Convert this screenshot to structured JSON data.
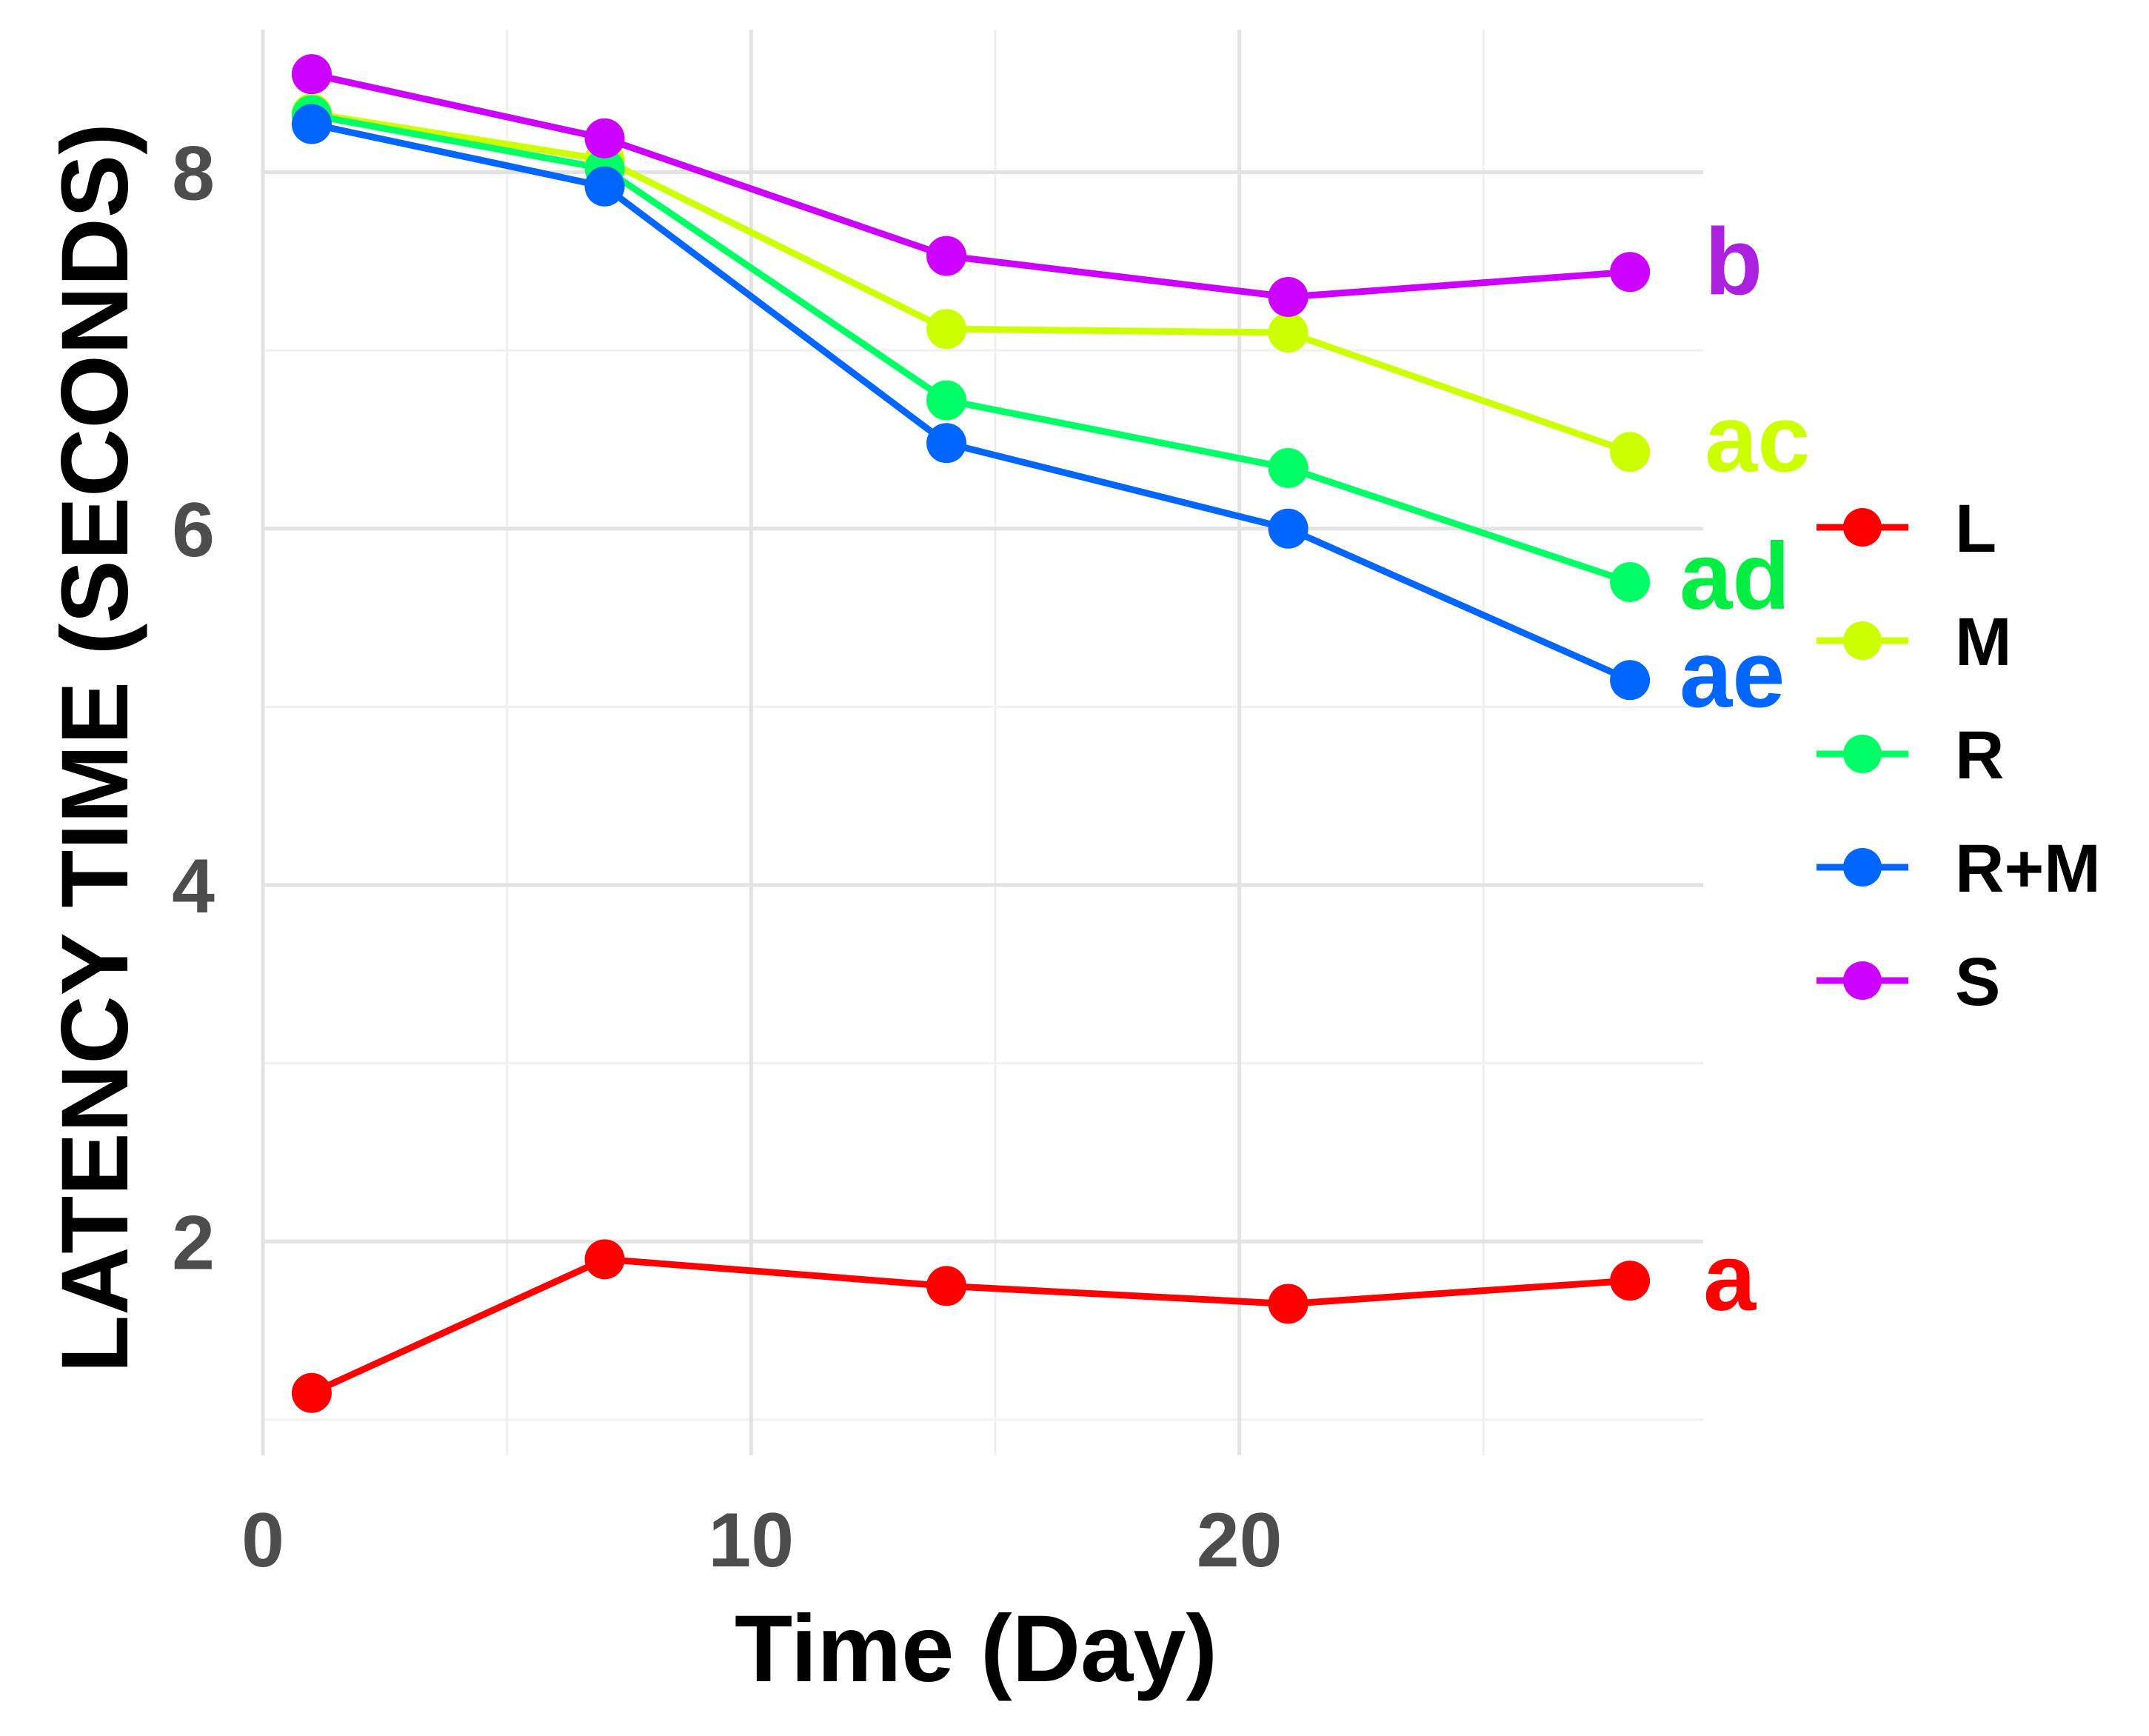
{
  "chart_data": {
    "type": "line",
    "title": "",
    "xlabel": "Time (Day)",
    "ylabel": "LATENCY TIME (SECONDS)",
    "xlim": [
      0,
      29.5
    ],
    "ylim": [
      0.8,
      8.8
    ],
    "x_ticks": [
      0,
      10,
      20
    ],
    "y_ticks": [
      2,
      4,
      6,
      8
    ],
    "grid": true,
    "legend_position": "right",
    "x": [
      1,
      7,
      14,
      21,
      28
    ],
    "series": [
      {
        "name": "L",
        "color": "#ff0000",
        "values": [
          1.15,
          1.9,
          1.75,
          1.65,
          1.78
        ],
        "label": "a"
      },
      {
        "name": "M",
        "color": "#ccff00",
        "values": [
          8.33,
          8.07,
          7.12,
          7.1,
          6.43
        ],
        "label": "ac"
      },
      {
        "name": "R",
        "color": "#00ff66",
        "values": [
          8.32,
          8.02,
          6.72,
          6.34,
          5.7
        ],
        "label": "ad"
      },
      {
        "name": "R+M",
        "color": "#0066ff",
        "values": [
          8.27,
          7.92,
          6.48,
          6.0,
          5.15
        ],
        "label": "ae"
      },
      {
        "name": "S",
        "color": "#cc00ff",
        "values": [
          8.55,
          8.19,
          7.53,
          7.3,
          7.44
        ],
        "label": "b"
      }
    ]
  },
  "sig_label_colors": {
    "a": "#ff0000",
    "ac": "#ccff00",
    "ad": "#00ee44",
    "ae": "#0066ff",
    "b": "#aa22dd"
  }
}
